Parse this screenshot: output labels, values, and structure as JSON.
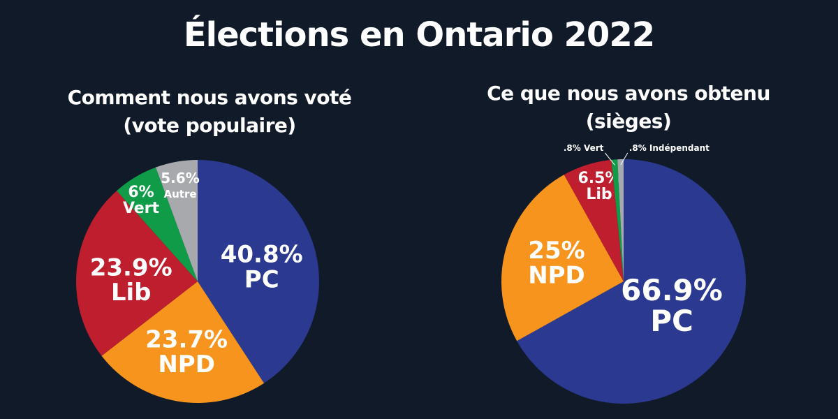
{
  "title": "Élections en Ontario 2022",
  "chart_data": [
    {
      "type": "pie",
      "title_lines": [
        "Comment nous avons voté",
        "(vote populaire)"
      ],
      "start": "12 o'clock, clockwise",
      "slices": [
        {
          "party": "PC",
          "value": 40.8,
          "pct_label": "40.8%",
          "name_label": "PC",
          "color": "#2b3990",
          "size": "large"
        },
        {
          "party": "NPD",
          "value": 23.7,
          "pct_label": "23.7%",
          "name_label": "NPD",
          "color": "#f7941d",
          "size": "large"
        },
        {
          "party": "Lib",
          "value": 23.9,
          "pct_label": "23.9%",
          "name_label": "Lib",
          "color": "#be1e2d",
          "size": "large"
        },
        {
          "party": "Vert",
          "value": 6.0,
          "pct_label": "6%",
          "name_label": "Vert",
          "color": "#0f9b48",
          "size": "medium"
        },
        {
          "party": "Autre",
          "value": 5.6,
          "pct_label": "5.6%",
          "name_label": "Autre",
          "color": "#a7a9ac",
          "size": "small"
        }
      ]
    },
    {
      "type": "pie",
      "title_lines": [
        "Ce que nous avons obtenu",
        "(sièges)"
      ],
      "start": "12 o'clock, clockwise",
      "slices": [
        {
          "party": "PC",
          "value": 66.9,
          "pct_label": "66.9%",
          "name_label": "PC",
          "color": "#2b3990",
          "size": "large"
        },
        {
          "party": "NPD",
          "value": 25.0,
          "pct_label": "25%",
          "name_label": "NPD",
          "color": "#f7941d",
          "size": "large"
        },
        {
          "party": "Lib",
          "value": 6.5,
          "pct_label": "6.5%",
          "name_label": "Lib",
          "color": "#be1e2d",
          "size": "medium"
        },
        {
          "party": "Vert",
          "value": 0.8,
          "pct_label": ".8% Vert",
          "name_label": "",
          "color": "#0f9b48",
          "size": "callout"
        },
        {
          "party": "Indépendant",
          "value": 0.8,
          "pct_label": ".8% Indépendant",
          "name_label": "",
          "color": "#a7a9ac",
          "size": "callout"
        }
      ]
    }
  ]
}
